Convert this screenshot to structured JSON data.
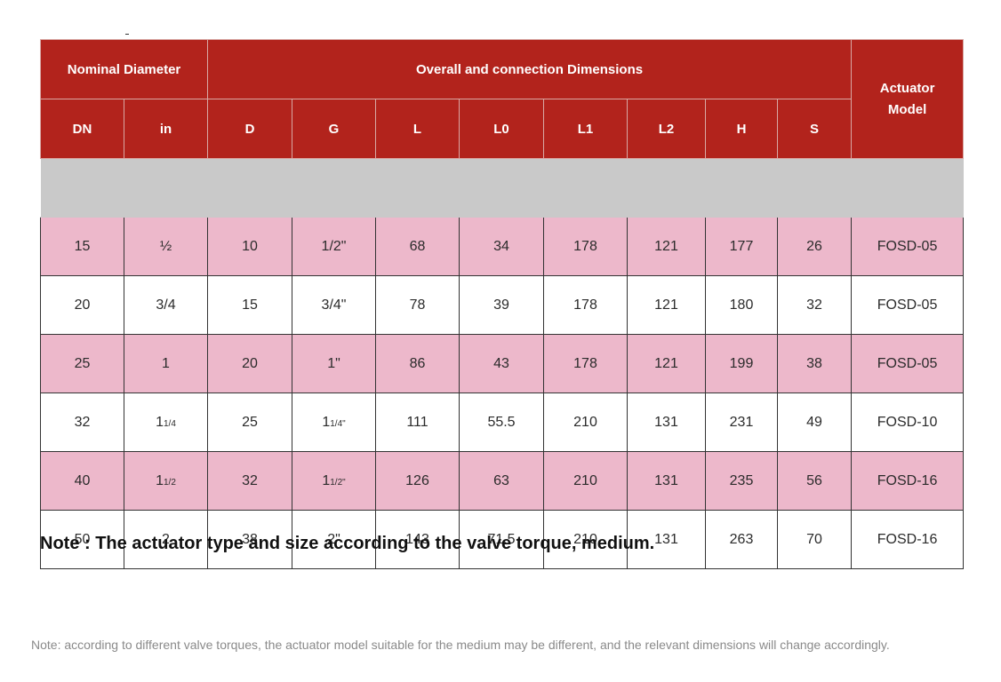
{
  "header": {
    "nominal_diameter": "Nominal Diameter",
    "overall_dimensions": "Overall and connection Dimensions",
    "actuator_model_line1": "Actuator",
    "actuator_model_line2": "Model",
    "columns": [
      "DN",
      "in",
      "D",
      "G",
      "L",
      "L0",
      "L1",
      "L2",
      "H",
      "S"
    ]
  },
  "rows": [
    {
      "dn": "15",
      "in_main": "½",
      "in_frac": "",
      "d": "10",
      "g_main": "1/2\"",
      "g_frac": "",
      "l": "68",
      "l0": "34",
      "l1": "178",
      "l2": "121",
      "h": "177",
      "s": "26",
      "model": "FOSD-05"
    },
    {
      "dn": "20",
      "in_main": "3/4",
      "in_frac": "",
      "d": "15",
      "g_main": "3/4\"",
      "g_frac": "",
      "l": "78",
      "l0": "39",
      "l1": "178",
      "l2": "121",
      "h": "180",
      "s": "32",
      "model": "FOSD-05"
    },
    {
      "dn": "25",
      "in_main": "1",
      "in_frac": "",
      "d": "20",
      "g_main": "1\"",
      "g_frac": "",
      "l": "86",
      "l0": "43",
      "l1": "178",
      "l2": "121",
      "h": "199",
      "s": "38",
      "model": "FOSD-05"
    },
    {
      "dn": "32",
      "in_main": "1",
      "in_frac": "1/4",
      "d": "25",
      "g_main": "1",
      "g_frac": "1/4\"",
      "l": "111",
      "l0": "55.5",
      "l1": "210",
      "l2": "131",
      "h": "231",
      "s": "49",
      "model": "FOSD-10"
    },
    {
      "dn": "40",
      "in_main": "1",
      "in_frac": "1/2",
      "d": "32",
      "g_main": "1",
      "g_frac": "1/2\"",
      "l": "126",
      "l0": "63",
      "l1": "210",
      "l2": "131",
      "h": "235",
      "s": "56",
      "model": "FOSD-16"
    },
    {
      "dn": "50",
      "in_main": "2",
      "in_frac": "",
      "d": "38",
      "g_main": "2\"",
      "g_frac": "",
      "l": "143",
      "l0": "71.5",
      "l1": "210",
      "l2": "131",
      "h": "263",
      "s": "70",
      "model": "FOSD-16"
    }
  ],
  "note_main": "Note : The actuator type and size according to the valve torque, medium.",
  "note_foot": "Note: according to different valve torques, the actuator model suitable for the medium may be different, and the relevant dimensions will change accordingly.",
  "colors": {
    "header_red": "#b2231c",
    "row_pink": "#edb8cb"
  }
}
